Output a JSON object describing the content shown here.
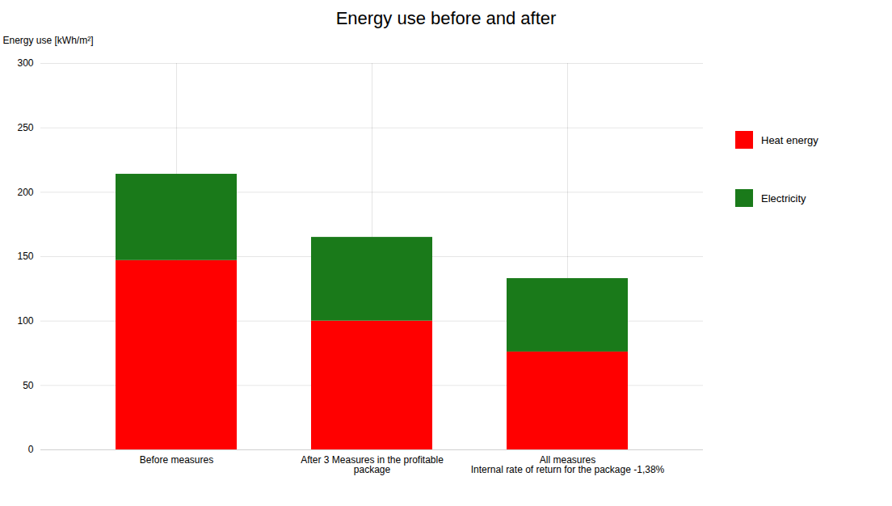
{
  "chart_data": {
    "type": "bar",
    "title": "Energy use before and after",
    "ylabel": "Energy use [kWh/m²]",
    "categories": [
      "Before measures",
      "After 3 Measures in the profitable\npackage",
      "All measures\nInternal rate of return for the package -1,38%"
    ],
    "series": [
      {
        "name": "Heat energy",
        "color": "#ff0000",
        "values": [
          147,
          100,
          76
        ]
      },
      {
        "name": "Electricity",
        "color": "#1a7a1a",
        "values": [
          67,
          65,
          57
        ]
      }
    ],
    "stacked": true,
    "ylim": [
      0,
      300
    ],
    "yticks": [
      0,
      50,
      100,
      150,
      200,
      250,
      300
    ],
    "grid": true,
    "legend": "right"
  }
}
